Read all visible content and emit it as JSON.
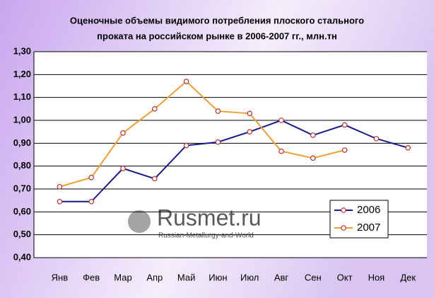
{
  "chart_data": {
    "type": "line",
    "title": [
      "Оценочные объемы видимого потребления плоского стального",
      "проката на российском рынке в 2006-2007 гг., млн.тн"
    ],
    "categories": [
      "Янв",
      "Фев",
      "Мар",
      "Апр",
      "Май",
      "Июн",
      "Июл",
      "Авг",
      "Сен",
      "Окт",
      "Ноя",
      "Дек"
    ],
    "series": [
      {
        "name": "2006",
        "color": "#1a1a8c",
        "values": [
          0.645,
          0.645,
          0.79,
          0.745,
          0.89,
          0.905,
          0.95,
          1.0,
          0.935,
          0.98,
          0.92,
          0.88
        ]
      },
      {
        "name": "2007",
        "color": "#f0a030",
        "values": [
          0.71,
          0.75,
          0.945,
          1.05,
          1.17,
          1.04,
          1.03,
          0.865,
          0.835,
          0.87,
          null,
          null
        ]
      }
    ],
    "ylim": [
      0.4,
      1.3
    ],
    "yticks": [
      {
        "value": 0.4,
        "label": "0,40"
      },
      {
        "value": 0.5,
        "label": "0,50"
      },
      {
        "value": 0.6,
        "label": "0,60"
      },
      {
        "value": 0.7,
        "label": "0,70"
      },
      {
        "value": 0.8,
        "label": "0,80"
      },
      {
        "value": 0.9,
        "label": "0,90"
      },
      {
        "value": 1.0,
        "label": "1,00"
      },
      {
        "value": 1.1,
        "label": "1,10"
      },
      {
        "value": 1.2,
        "label": "1,20"
      },
      {
        "value": 1.3,
        "label": "1,30"
      }
    ],
    "grid": true,
    "legend": "lower-right",
    "watermark": {
      "name": "Rusmet.ru",
      "subtitle": "Russian-Metallurgy-and-World"
    }
  }
}
